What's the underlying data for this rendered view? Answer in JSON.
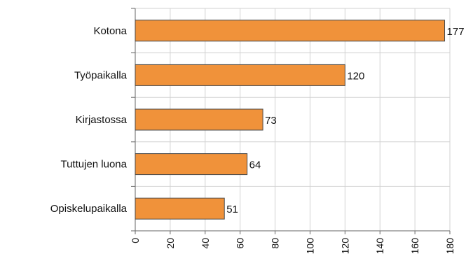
{
  "chart_data": {
    "type": "bar",
    "orientation": "horizontal",
    "title": "",
    "xlabel": "",
    "ylabel": "",
    "categories": [
      "Kotona",
      "Työpaikalla",
      "Kirjastossa",
      "Tuttujen luona",
      "Opiskelupaikalla"
    ],
    "values": [
      177,
      120,
      73,
      64,
      51
    ],
    "xlim": [
      0,
      180
    ],
    "ticks": [
      0,
      20,
      40,
      60,
      80,
      100,
      120,
      140,
      160,
      180
    ],
    "grid": true,
    "legend": "none",
    "data_labels": true,
    "tick_label_rotation": "vertical",
    "colors": {
      "bar": "#F0923A",
      "bar_edge": "#4a4a4a",
      "grid": "#d2d2d2"
    }
  }
}
